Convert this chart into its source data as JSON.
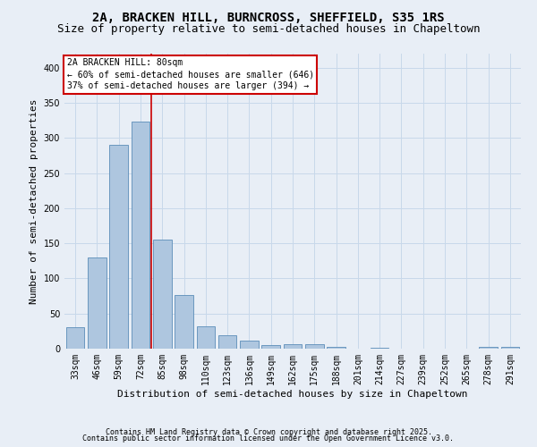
{
  "title": "2A, BRACKEN HILL, BURNCROSS, SHEFFIELD, S35 1RS",
  "subtitle": "Size of property relative to semi-detached houses in Chapeltown",
  "xlabel": "Distribution of semi-detached houses by size in Chapeltown",
  "ylabel": "Number of semi-detached properties",
  "categories": [
    "33sqm",
    "46sqm",
    "59sqm",
    "72sqm",
    "85sqm",
    "98sqm",
    "110sqm",
    "123sqm",
    "136sqm",
    "149sqm",
    "162sqm",
    "175sqm",
    "188sqm",
    "201sqm",
    "214sqm",
    "227sqm",
    "239sqm",
    "252sqm",
    "265sqm",
    "278sqm",
    "291sqm"
  ],
  "values": [
    30,
    130,
    290,
    323,
    155,
    77,
    32,
    19,
    11,
    5,
    6,
    6,
    2,
    0,
    1,
    0,
    0,
    0,
    0,
    2,
    2
  ],
  "bar_color": "#aec6df",
  "bar_edge_color": "#5b8db8",
  "grid_color": "#c8d8ea",
  "background_color": "#e8eef6",
  "annotation_line1": "2A BRACKEN HILL: 80sqm",
  "annotation_line2": "← 60% of semi-detached houses are smaller (646)",
  "annotation_line3": "37% of semi-detached houses are larger (394) →",
  "annotation_box_color": "#ffffff",
  "annotation_box_edge_color": "#cc0000",
  "vline_color": "#cc0000",
  "vline_x": 3.5,
  "ylim": [
    0,
    420
  ],
  "yticks": [
    0,
    50,
    100,
    150,
    200,
    250,
    300,
    350,
    400
  ],
  "footer1": "Contains HM Land Registry data © Crown copyright and database right 2025.",
  "footer2": "Contains public sector information licensed under the Open Government Licence v3.0.",
  "title_fontsize": 10,
  "subtitle_fontsize": 9,
  "xlabel_fontsize": 8,
  "ylabel_fontsize": 8,
  "tick_fontsize": 7,
  "annotation_fontsize": 7,
  "footer_fontsize": 6
}
